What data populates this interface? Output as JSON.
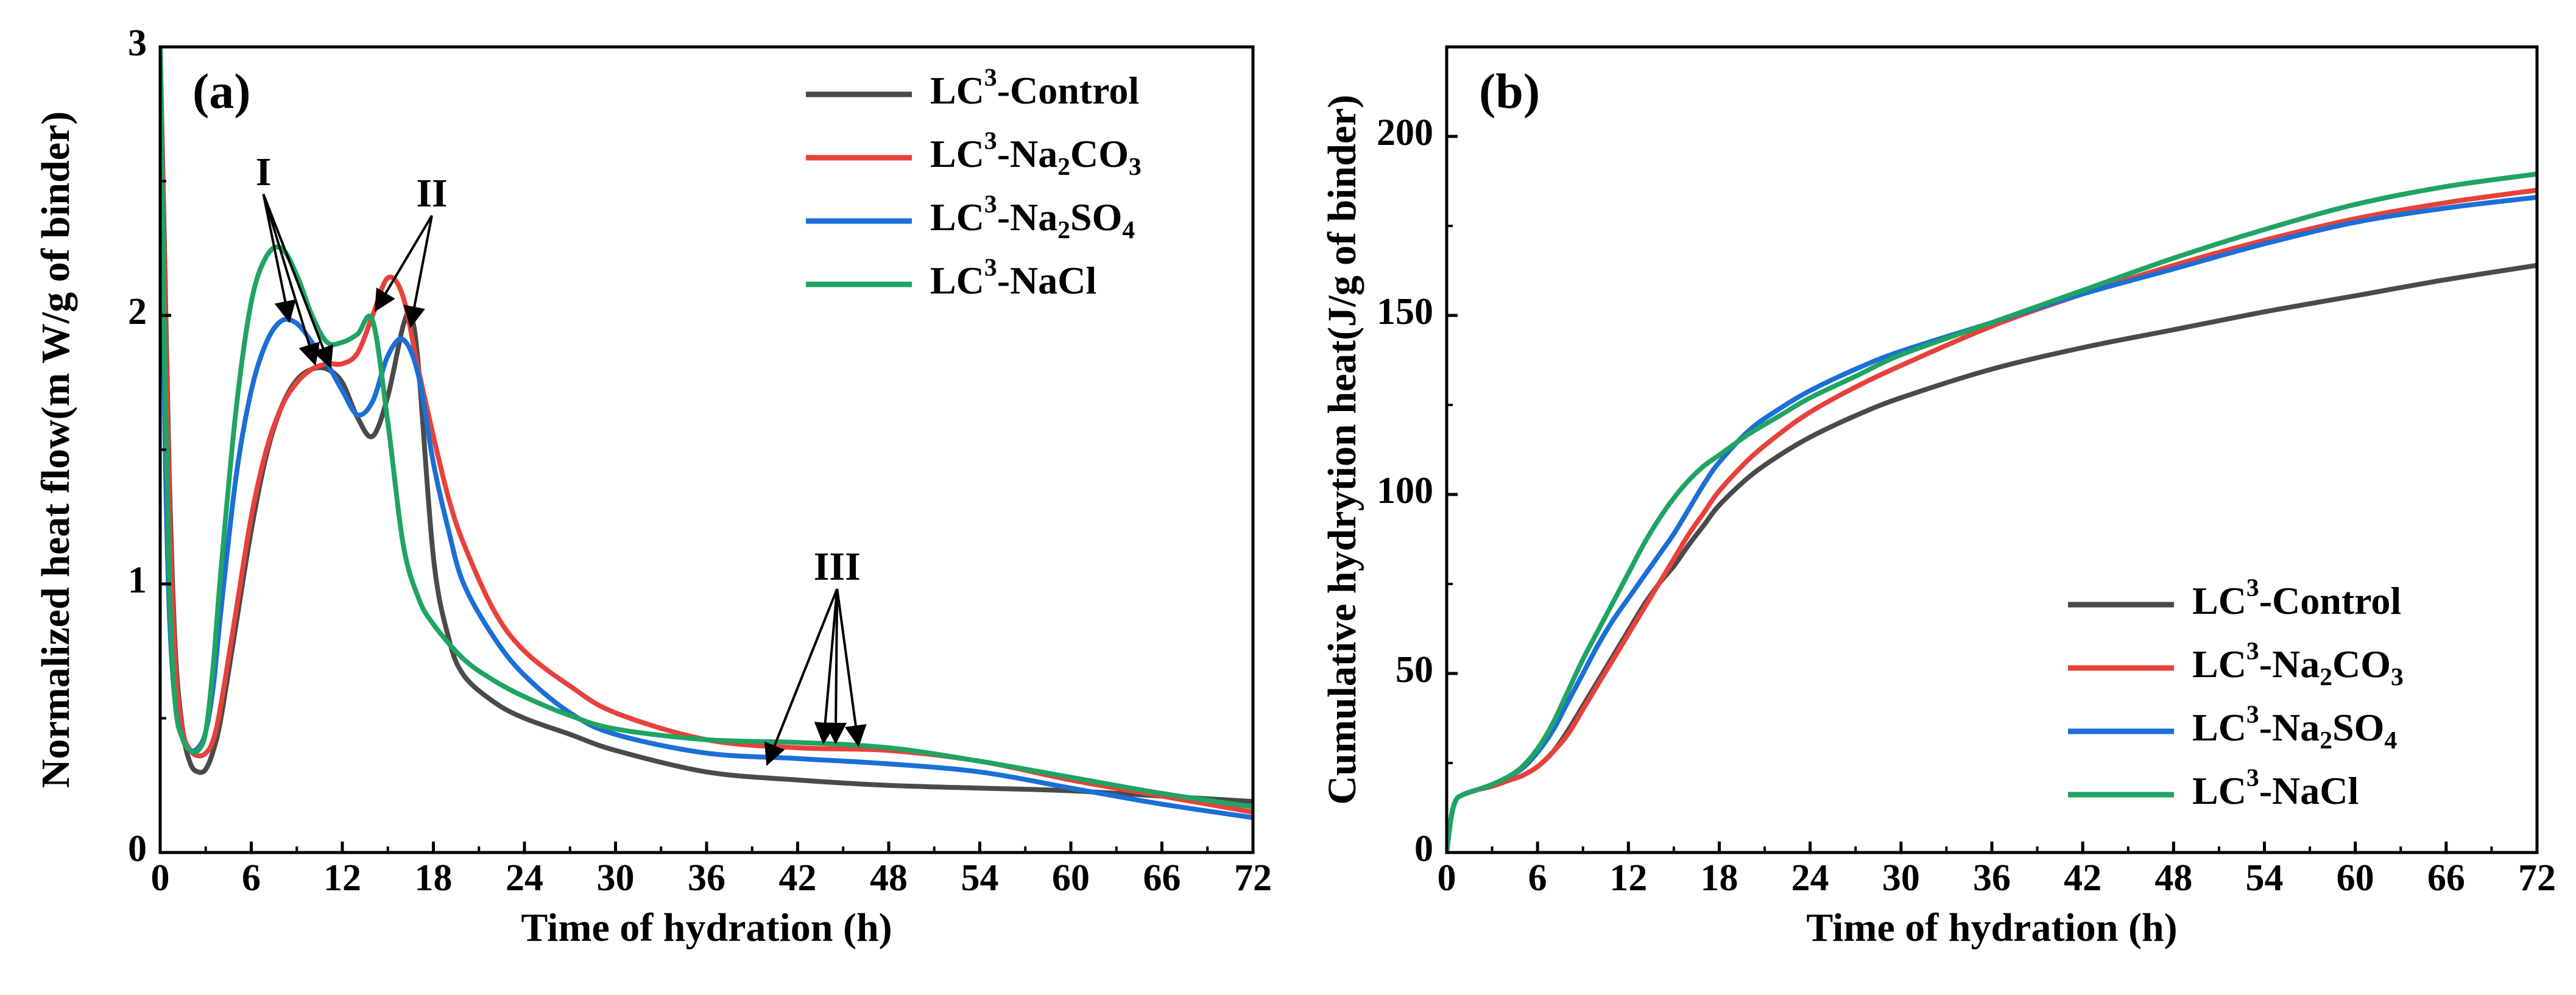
{
  "chart_data": [
    {
      "type": "line",
      "panel_label": "(a)",
      "title": "",
      "xlabel": "Time of hydration (h)",
      "ylabel": "Normalized heat flow(m W/g of binder)",
      "xlim": [
        0,
        72
      ],
      "ylim": [
        0,
        3
      ],
      "xticks": [
        0,
        6,
        12,
        18,
        24,
        30,
        36,
        42,
        48,
        54,
        60,
        66,
        72
      ],
      "yticks": [
        0,
        1,
        2,
        3
      ],
      "grid": false,
      "legend_position": "top-right",
      "series": [
        {
          "name": "LC³-Control",
          "legend": {
            "pre": "LC",
            "sup": "3",
            "post": "-Control"
          },
          "color": "#4a4a4a",
          "x": [
            0,
            0.3,
            0.6,
            1,
            1.5,
            2,
            2.5,
            3,
            3.5,
            4,
            5,
            6,
            7,
            8,
            9,
            10,
            11,
            12,
            13,
            14,
            15,
            16,
            16.5,
            17,
            18,
            19,
            20,
            22,
            24,
            27,
            30,
            36,
            42,
            48,
            54,
            60,
            66,
            72
          ],
          "y": [
            3,
            2.2,
            1.4,
            0.75,
            0.45,
            0.33,
            0.3,
            0.31,
            0.38,
            0.5,
            0.85,
            1.2,
            1.48,
            1.66,
            1.76,
            1.8,
            1.8,
            1.75,
            1.62,
            1.55,
            1.7,
            1.96,
            2.0,
            1.82,
            1.1,
            0.8,
            0.66,
            0.56,
            0.5,
            0.44,
            0.38,
            0.3,
            0.27,
            0.25,
            0.24,
            0.23,
            0.21,
            0.19
          ]
        },
        {
          "name": "LC³-Na₂CO₃",
          "legend": {
            "pre": "LC",
            "sup": "3",
            "mid": "-Na",
            "sub1": "2",
            "mid2": "CO",
            "sub2": "3"
          },
          "color": "#e8413b",
          "x": [
            0,
            0.3,
            0.6,
            1,
            1.5,
            2,
            2.5,
            3,
            3.5,
            4,
            5,
            6,
            7,
            8,
            9,
            10,
            11,
            12,
            13,
            14,
            15,
            16,
            17,
            18,
            19,
            20,
            22,
            24,
            27,
            30,
            36,
            42,
            48,
            54,
            60,
            66,
            72
          ],
          "y": [
            3,
            2.1,
            1.3,
            0.7,
            0.45,
            0.38,
            0.36,
            0.37,
            0.42,
            0.55,
            0.9,
            1.25,
            1.5,
            1.66,
            1.75,
            1.8,
            1.82,
            1.82,
            1.86,
            2.0,
            2.14,
            2.07,
            1.8,
            1.55,
            1.32,
            1.15,
            0.9,
            0.75,
            0.62,
            0.52,
            0.42,
            0.39,
            0.38,
            0.34,
            0.27,
            0.21,
            0.15
          ]
        },
        {
          "name": "LC³-Na₂SO₄",
          "legend": {
            "pre": "LC",
            "sup": "3",
            "mid": "-Na",
            "sub1": "2",
            "mid2": "SO",
            "sub2": "4"
          },
          "color": "#1b6fd6",
          "x": [
            0,
            0.3,
            0.6,
            1,
            1.5,
            2,
            2.5,
            3,
            3.5,
            4,
            5,
            6,
            7,
            8,
            9,
            10,
            11,
            12,
            13,
            14,
            15,
            16,
            17,
            18,
            19,
            20,
            22,
            24,
            27,
            30,
            36,
            42,
            48,
            54,
            60,
            66,
            72
          ],
          "y": [
            3,
            1.6,
            0.9,
            0.55,
            0.42,
            0.38,
            0.39,
            0.45,
            0.62,
            0.9,
            1.4,
            1.72,
            1.9,
            1.98,
            1.97,
            1.9,
            1.82,
            1.72,
            1.63,
            1.68,
            1.85,
            1.91,
            1.78,
            1.45,
            1.2,
            1.0,
            0.8,
            0.66,
            0.52,
            0.44,
            0.37,
            0.35,
            0.33,
            0.3,
            0.24,
            0.18,
            0.13
          ]
        },
        {
          "name": "LC³-NaCl",
          "legend": {
            "pre": "LC",
            "sup": "3",
            "post": "-NaCl"
          },
          "color": "#1fa463",
          "x": [
            0,
            0.3,
            0.6,
            1,
            1.5,
            2,
            2.5,
            3,
            3.5,
            4,
            5,
            6,
            7,
            8,
            9,
            10,
            11,
            12,
            13,
            14,
            15,
            16,
            17,
            18,
            20,
            22,
            24,
            27,
            30,
            36,
            42,
            48,
            54,
            60,
            66,
            72
          ],
          "y": [
            3,
            1.8,
            1.0,
            0.55,
            0.42,
            0.38,
            0.38,
            0.45,
            0.7,
            1.05,
            1.65,
            2.05,
            2.22,
            2.25,
            2.15,
            2.0,
            1.9,
            1.9,
            1.93,
            1.98,
            1.6,
            1.15,
            0.95,
            0.85,
            0.72,
            0.64,
            0.58,
            0.51,
            0.46,
            0.42,
            0.41,
            0.39,
            0.34,
            0.28,
            0.22,
            0.17
          ]
        }
      ],
      "annotations": [
        {
          "text": "I",
          "x": 6.8,
          "y": 2.52,
          "arrows_to": [
            [
              8.5,
              1.98
            ],
            [
              10.2,
              1.82
            ],
            [
              11.2,
              1.81
            ]
          ]
        },
        {
          "text": "II",
          "x": 17.9,
          "y": 2.44,
          "arrows_to": [
            [
              14.2,
              2.02
            ],
            [
              16.5,
              1.96
            ]
          ]
        },
        {
          "text": "III",
          "x": 44.6,
          "y": 1.05,
          "arrows_to": [
            [
              40,
              0.33
            ],
            [
              43.7,
              0.41
            ],
            [
              44.5,
              0.41
            ],
            [
              46,
              0.4
            ]
          ]
        }
      ]
    },
    {
      "type": "line",
      "panel_label": "(b)",
      "title": "",
      "xlabel": "Time of hydration (h)",
      "ylabel": "Cumulative hydrytion heat(J/g of binder)",
      "xlim": [
        0,
        72
      ],
      "ylim": [
        0,
        225
      ],
      "xticks": [
        0,
        6,
        12,
        18,
        24,
        30,
        36,
        42,
        48,
        54,
        60,
        66,
        72
      ],
      "yticks": [
        0,
        50,
        100,
        150,
        200
      ],
      "grid": false,
      "legend_position": "bottom-right",
      "series": [
        {
          "name": "LC³-Control",
          "legend": {
            "pre": "LC",
            "sup": "3",
            "post": "-Control"
          },
          "color": "#4a4a4a",
          "x": [
            0,
            0.3,
            0.6,
            1,
            2,
            3,
            4,
            5,
            6,
            7,
            8,
            9,
            10,
            11,
            12,
            13,
            14,
            15,
            16,
            17,
            18,
            20,
            22,
            24,
            27,
            30,
            36,
            42,
            48,
            54,
            60,
            66,
            72
          ],
          "y": [
            0,
            10,
            14.5,
            16,
            17.5,
            18.5,
            20,
            21.5,
            24,
            28,
            34,
            41,
            48,
            55,
            62,
            69,
            75,
            80,
            86,
            91.5,
            97,
            105,
            111,
            116,
            122,
            127,
            135,
            141,
            146,
            151,
            155.5,
            160,
            164
          ]
        },
        {
          "name": "LC³-Na₂CO₃",
          "legend": {
            "pre": "LC",
            "sup": "3",
            "mid": "-Na",
            "sub1": "2",
            "mid2": "CO",
            "sub2": "3"
          },
          "color": "#e8413b",
          "x": [
            0,
            0.3,
            0.6,
            1,
            2,
            3,
            4,
            5,
            6,
            7,
            8,
            9,
            10,
            11,
            12,
            13,
            14,
            15,
            16,
            17,
            18,
            20,
            22,
            24,
            27,
            30,
            36,
            42,
            48,
            54,
            60,
            66,
            72
          ],
          "y": [
            0,
            10,
            14.5,
            16,
            17.5,
            18.5,
            20,
            21.5,
            24,
            28,
            33,
            40,
            47,
            54,
            61,
            68,
            75,
            82,
            89,
            95,
            101,
            110,
            117,
            123,
            130,
            136,
            147,
            156,
            164,
            171,
            177,
            181.5,
            185
          ]
        },
        {
          "name": "LC³-Na₂SO₄",
          "legend": {
            "pre": "LC",
            "sup": "3",
            "mid": "-Na",
            "sub1": "2",
            "mid2": "SO",
            "sub2": "4"
          },
          "color": "#1b6fd6",
          "x": [
            0,
            0.3,
            0.6,
            1,
            2,
            3,
            4,
            5,
            6,
            7,
            8,
            9,
            10,
            11,
            12,
            13,
            14,
            15,
            16,
            17,
            18,
            20,
            22,
            24,
            27,
            30,
            36,
            42,
            48,
            54,
            60,
            66,
            72
          ],
          "y": [
            0,
            10,
            14.5,
            16,
            17.5,
            19,
            21,
            23.5,
            28,
            34,
            42,
            50,
            58,
            65,
            71,
            77,
            83,
            89,
            96,
            103,
            109,
            118,
            124,
            129,
            135,
            140,
            148,
            156,
            163,
            170,
            176,
            180,
            183
          ]
        },
        {
          "name": "LC³-NaCl",
          "legend": {
            "pre": "LC",
            "sup": "3",
            "post": "-NaCl"
          },
          "color": "#1fa463",
          "x": [
            0,
            0.3,
            0.6,
            1,
            2,
            3,
            4,
            5,
            6,
            7,
            8,
            9,
            10,
            11,
            12,
            13,
            14,
            15,
            16,
            17,
            18,
            20,
            22,
            24,
            27,
            30,
            36,
            42,
            48,
            54,
            60,
            66,
            72
          ],
          "y": [
            0,
            10,
            14.5,
            16,
            17.5,
            19,
            21,
            24,
            29,
            36,
            45,
            54,
            62,
            70,
            78,
            86,
            93,
            99,
            104,
            108,
            111,
            117,
            122,
            127,
            133,
            139,
            148,
            157,
            166,
            174,
            181,
            186,
            189.5
          ]
        }
      ]
    }
  ]
}
